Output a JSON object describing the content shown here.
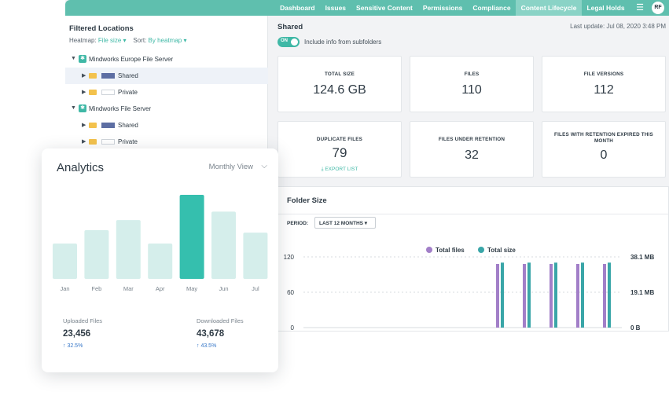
{
  "nav": {
    "items": [
      "Dashboard",
      "Issues",
      "Sensitive Content",
      "Permissions",
      "Compliance",
      "Content Lifecycle",
      "Legal Holds"
    ],
    "active": "Content Lifecycle",
    "menu_icon": "hamburger-icon",
    "avatar": "RF"
  },
  "left": {
    "title": "Filtered Locations",
    "heatmap_label": "Heatmap:",
    "heatmap_value": "File size",
    "sort_label": "Sort:",
    "sort_value": "By heatmap",
    "tree": [
      {
        "label": "Mindworks Europe File Server",
        "kind": "server"
      },
      {
        "label": "Shared",
        "kind": "folder",
        "heat": "full",
        "selected": true
      },
      {
        "label": "Private",
        "kind": "folder",
        "heat": "empty"
      },
      {
        "label": "Mindworks File Server",
        "kind": "server"
      },
      {
        "label": "Shared",
        "kind": "folder",
        "heat": "full"
      },
      {
        "label": "Private",
        "kind": "folder",
        "heat": "empty"
      }
    ]
  },
  "content": {
    "title": "Shared",
    "last_update": "Last update: Jul 08, 2020 3:48 PM",
    "toggle_text": "ON",
    "toggle_label": "Include info from subfolders",
    "cards": [
      {
        "label": "TOTAL SIZE",
        "value": "124.6 GB"
      },
      {
        "label": "FILES",
        "value": "110"
      },
      {
        "label": "FILE VERSIONS",
        "value": "112"
      },
      {
        "label": "DUPLICATE FILES",
        "value": "79",
        "link": "⤓ EXPORT LIST"
      },
      {
        "label": "FILES UNDER RETENTION",
        "value": "32"
      },
      {
        "label": "FILES WITH RETENTION EXPIRED THIS MONTH",
        "value": "0"
      }
    ],
    "folder_size": {
      "title": "Folder Size",
      "period_label": "PERIOD:",
      "period_value": "LAST 12 MONTHS ▾"
    }
  },
  "analytics": {
    "title": "Analytics",
    "view": "Monthly View",
    "uploaded_label": "Uploaded Files",
    "uploaded_value": "23,456",
    "uploaded_change": "32.5%",
    "downloaded_label": "Downloaded Files",
    "downloaded_value": "43,678",
    "downloaded_change": "43.5%"
  },
  "chart_data": [
    {
      "type": "bar",
      "categories": [
        "Jan",
        "Feb",
        "Mar",
        "Apr",
        "May",
        "Jun",
        "Jul"
      ],
      "values": [
        42,
        58,
        70,
        42,
        100,
        80,
        55
      ],
      "highlight": "May",
      "colors": {
        "bar": "#d5eeeb",
        "highlight": "#35bfae"
      }
    },
    {
      "type": "bar",
      "series": [
        {
          "name": "Total files",
          "color": "#a27fc8",
          "values": [
            0,
            0,
            0,
            0,
            0,
            0,
            0,
            108,
            108,
            108,
            108,
            108
          ]
        },
        {
          "name": "Total size",
          "color": "#3aa6a8",
          "values": [
            0,
            0,
            0,
            0,
            0,
            0,
            0,
            35.0,
            35.0,
            35.0,
            35.0,
            35.0
          ]
        }
      ],
      "left_axis": {
        "ticks": [
          "120",
          "60",
          "0"
        ],
        "max": 120
      },
      "right_axis": {
        "ticks": [
          "38.1 MB",
          "19.1 MB",
          "0 B"
        ],
        "max": 38.1,
        "unit": "MB"
      },
      "legend": "top-center"
    }
  ]
}
